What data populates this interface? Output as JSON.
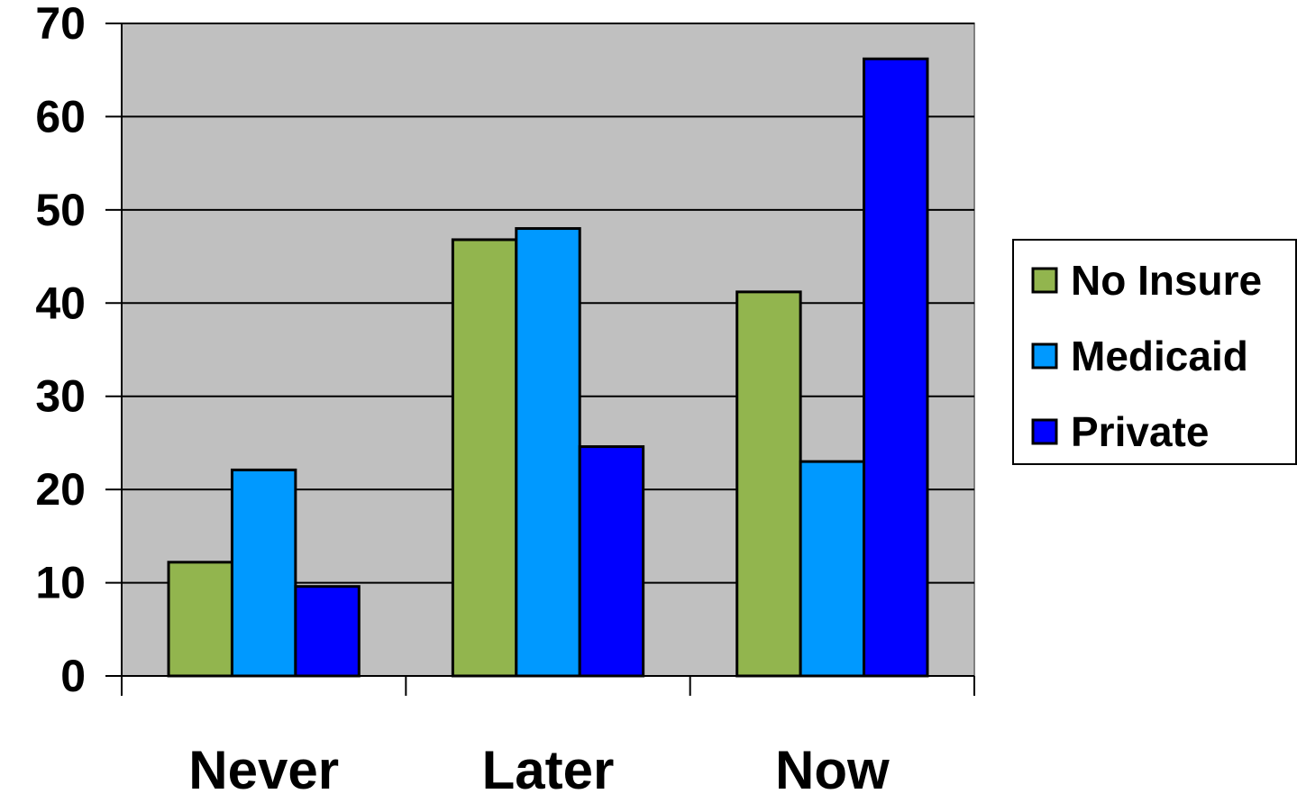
{
  "chart_data": {
    "type": "bar",
    "categories": [
      "Never",
      "Later",
      "Now"
    ],
    "series": [
      {
        "name": "No Insure",
        "values": [
          12.2,
          46.8,
          41.2
        ],
        "color": "#92b54e"
      },
      {
        "name": "Medicaid",
        "values": [
          22.1,
          48.0,
          23.0
        ],
        "color": "#0099ff"
      },
      {
        "name": "Private",
        "values": [
          9.6,
          24.6,
          66.2
        ],
        "color": "#0000ff"
      }
    ],
    "ylim": [
      0,
      70
    ],
    "yticks": [
      "0",
      "10",
      "20",
      "30",
      "40",
      "50",
      "60",
      "70"
    ],
    "grid": true,
    "legend_position": "right",
    "plot_background": "#c0c0c0",
    "title": "",
    "xlabel": "",
    "ylabel": ""
  }
}
